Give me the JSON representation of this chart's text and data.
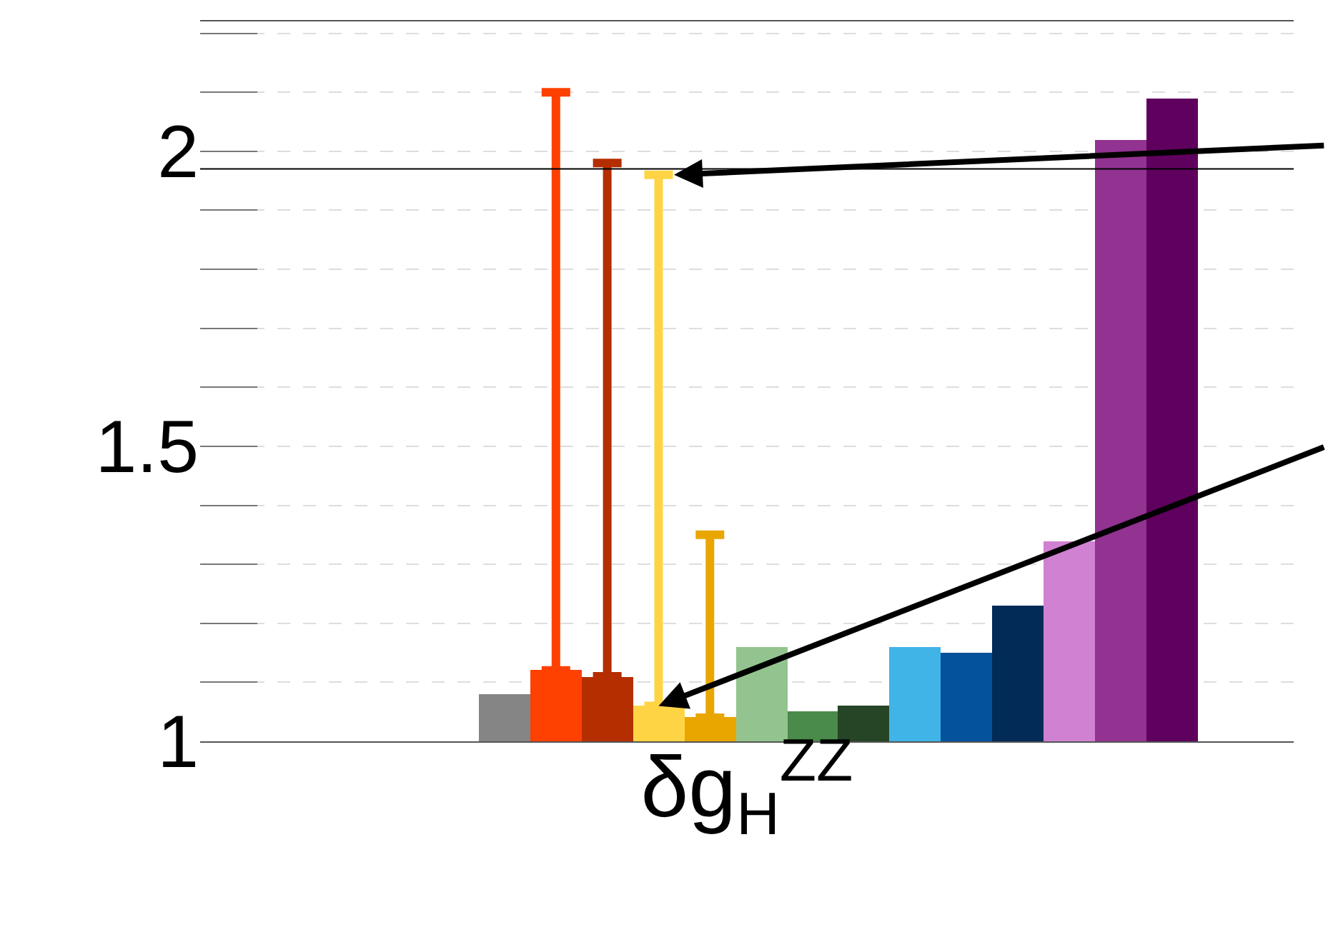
{
  "chart_data": {
    "type": "bar",
    "xlabel": "δg$_{H}$$^{ZZ}$",
    "categories": [
      null,
      null,
      null,
      null,
      null,
      null,
      null,
      null,
      null,
      null,
      null,
      null,
      null,
      null
    ],
    "values": [
      1.08,
      1.12,
      1.11,
      1.06,
      1.04,
      1.16,
      1.05,
      1.06,
      1.16,
      1.15,
      1.23,
      1.34,
      2.02,
      2.09
    ],
    "colors": [
      "#858585",
      "#fe4000",
      "#b42e00",
      "#fed445",
      "#eaa600",
      "#93c48f",
      "#4a8a4a",
      "#264426",
      "#40b4e6",
      "#04519c",
      "#022b58",
      "#d181d2",
      "#923291",
      "#5f005f"
    ],
    "errors": [
      null,
      [
        1.12,
        2.1
      ],
      [
        1.11,
        1.98
      ],
      [
        1.06,
        1.96
      ],
      [
        1.04,
        1.35
      ],
      null,
      null,
      null,
      null,
      null,
      null,
      null,
      null,
      null
    ],
    "ylim": [
      1,
      2.22
    ],
    "yticks": [
      1,
      {
        "value": 1.1,
        "label": null
      },
      {
        "value": 1.2,
        "label": null
      },
      {
        "value": 1.3,
        "label": null
      },
      {
        "value": 1.4,
        "label": null
      },
      1.5,
      {
        "value": 1.6,
        "label": null
      },
      {
        "value": 1.7,
        "label": null
      },
      {
        "value": 1.8,
        "label": null
      },
      {
        "value": 1.9,
        "label": null
      },
      2,
      {
        "value": 2.1,
        "label": null
      },
      {
        "value": 2.2,
        "label": null
      }
    ],
    "ref_lines": [
      {
        "axis": "y",
        "value": 1.97,
        "color": "#000000"
      }
    ],
    "grid": "y"
  }
}
